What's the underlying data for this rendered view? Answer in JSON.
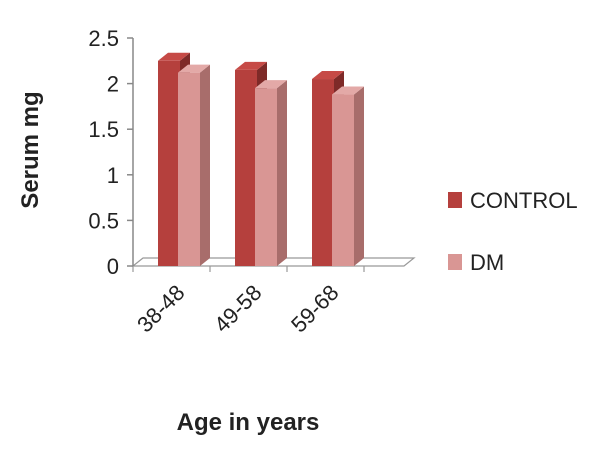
{
  "chart_data": {
    "type": "bar",
    "style": "3d-clustered-column",
    "categories": [
      "38-48",
      "49-58",
      "59-68"
    ],
    "series": [
      {
        "name": "CONTROL",
        "values": [
          2.25,
          2.15,
          2.05
        ],
        "color": "#b5403d",
        "top_color": "#c64a46",
        "side_color": "#7e2a28"
      },
      {
        "name": "DM",
        "values": [
          2.12,
          1.95,
          1.88
        ],
        "color": "#d99694",
        "top_color": "#e3a9a7",
        "side_color": "#a86d6b"
      }
    ],
    "xlabel": "Age in years",
    "ylabel": "Serum mg",
    "ylim": [
      0,
      2.5
    ],
    "yticks": [
      "0",
      "0.5",
      "1",
      "1.5",
      "2",
      "2.5"
    ],
    "grid": false,
    "legend_position": "right"
  }
}
